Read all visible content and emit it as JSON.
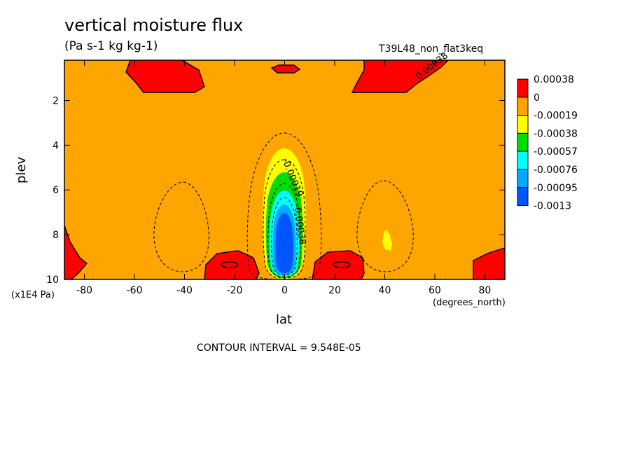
{
  "chart_data": {
    "type": "heatmap",
    "title": "vertical moisture flux",
    "units": "(Pa s-1 kg kg-1)",
    "run_name": "T39L48_non_flat3keq",
    "xlabel": "lat",
    "x_units": "(degrees_north)",
    "ylabel": "plev",
    "y_units": "(x1E4 Pa)",
    "xlim": [
      -88,
      88
    ],
    "ylim": [
      10,
      0.2
    ],
    "xticks": [
      "-80",
      "-60",
      "-40",
      "-20",
      "0",
      "20",
      "40",
      "60",
      "80"
    ],
    "yticks": [
      "2",
      "4",
      "6",
      "8",
      "10"
    ],
    "contour_interval_label": "CONTOUR INTERVAL = 9.548E-05",
    "contour_labels": [
      "-0.00019",
      "-0.00038",
      "0.00038"
    ],
    "legend": {
      "placement": "right",
      "labels": [
        "0.00038",
        "0",
        "-0.00019",
        "-0.00038",
        "-0.00057",
        "-0.00076",
        "-0.00095",
        "-0.0013"
      ],
      "colors": [
        "#ff0000",
        "#ffa500",
        "#ffff00",
        "#00dd00",
        "#00ffff",
        "#00aaff",
        "#0055ff",
        "#0055ff"
      ]
    },
    "colors": {
      "background_level": "#ffa500",
      "positive": "#ff0000",
      "yellow": "#ffff00",
      "green": "#00dd00",
      "cyan": "#00ffff",
      "lightblue": "#00aaff",
      "blue": "#0055ff"
    }
  }
}
